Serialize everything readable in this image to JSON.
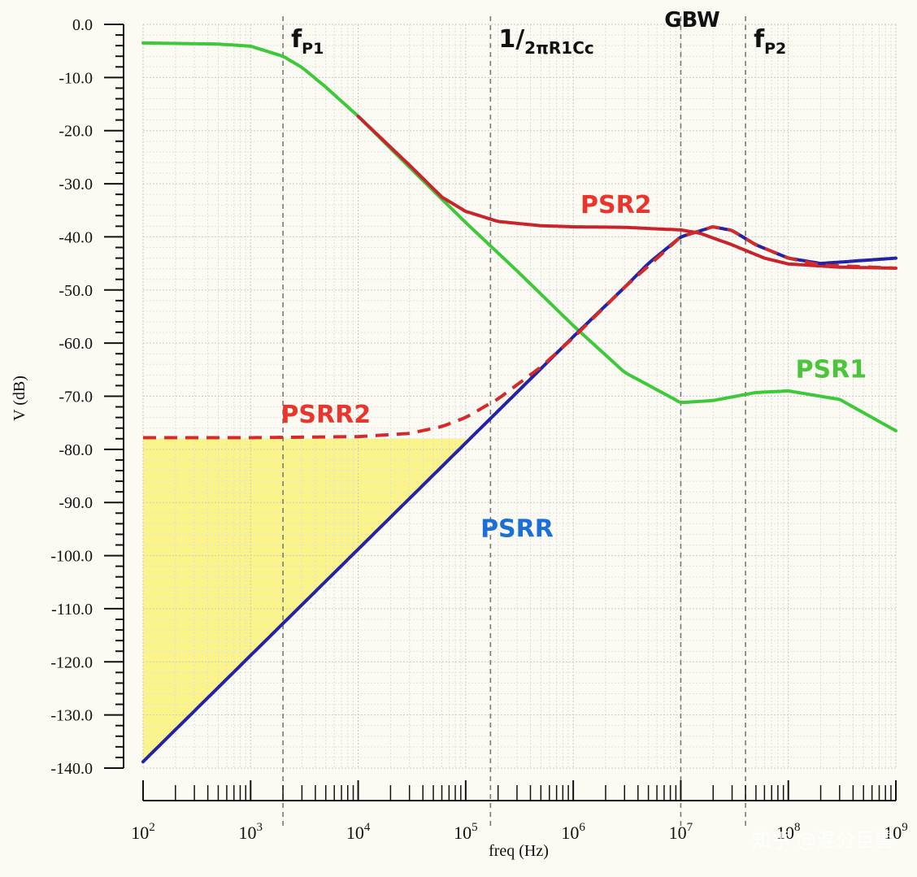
{
  "chart_data": {
    "type": "line",
    "xlabel": "freq (Hz)",
    "ylabel": "V (dB)",
    "xscale": "log",
    "xlim": [
      100,
      1000000000
    ],
    "ylim": [
      -140,
      0
    ],
    "grid": true,
    "y_ticks": [
      "0.0",
      "-10.0",
      "-20.0",
      "-30.0",
      "-40.0",
      "-50.0",
      "-60.0",
      "-70.0",
      "-80.0",
      "-90.0",
      "-100.0",
      "-110.0",
      "-120.0",
      "-130.0",
      "-140.0"
    ],
    "x_ticks": [
      {
        "base": "10",
        "exp": "2"
      },
      {
        "base": "10",
        "exp": "3"
      },
      {
        "base": "10",
        "exp": "4"
      },
      {
        "base": "10",
        "exp": "5"
      },
      {
        "base": "10",
        "exp": "6"
      },
      {
        "base": "10",
        "exp": "7"
      },
      {
        "base": "10",
        "exp": "8"
      },
      {
        "base": "10",
        "exp": "9"
      }
    ],
    "markers": [
      {
        "label": "fP1",
        "main": "f",
        "sub": "P1",
        "x": 2000
      },
      {
        "label": "1/2πR1Cc",
        "main": "1/",
        "sub": "2πR1Cc",
        "x": 170000
      },
      {
        "label": "GBW",
        "main": "GBW",
        "sub": "",
        "x": 10000000
      },
      {
        "label": "fP2",
        "main": "f",
        "sub": "P2",
        "x": 40000000
      }
    ],
    "series": [
      {
        "name": "PSR1",
        "color": "#3ec93a",
        "style": "solid",
        "x": [
          100,
          500,
          1000,
          2000,
          3000,
          5000,
          10000,
          30000,
          100000,
          300000,
          1000000,
          3000000,
          10000000,
          20000000,
          50000000,
          100000000,
          300000000,
          1000000000
        ],
        "y": [
          -3.5,
          -3.7,
          -4.1,
          -6,
          -8.1,
          -11.8,
          -17.3,
          -26.9,
          -37.3,
          -46.4,
          -56.7,
          -65.5,
          -71.2,
          -70.8,
          -69.3,
          -69,
          -70.6,
          -76.5
        ]
      },
      {
        "name": "PSR2",
        "color": "#c8242c",
        "style": "solid",
        "x": [
          10000,
          30000,
          60000,
          100000,
          200000,
          500000,
          1000000,
          3000000,
          10000000,
          15000000,
          30000000,
          60000000,
          100000000,
          300000000,
          1000000000
        ],
        "y": [
          -17.3,
          -26.5,
          -32.5,
          -35.2,
          -37.1,
          -37.9,
          -38.1,
          -38.2,
          -38.7,
          -39.3,
          -41.5,
          -44,
          -45.1,
          -45.7,
          -45.9
        ]
      },
      {
        "name": "PSRR",
        "color": "#2323a6",
        "style": "solid",
        "x": [
          100,
          100000,
          1000000,
          3000000,
          5000000,
          10000000,
          20000000,
          30000000,
          50000000,
          100000000,
          200000000,
          1000000000
        ],
        "y": [
          -138.8,
          -78.8,
          -58.8,
          -49.5,
          -45,
          -40,
          -38.1,
          -38.8,
          -41.5,
          -44,
          -45,
          -44
        ]
      },
      {
        "name": "PSRR2",
        "color": "#d42a2a",
        "style": "dashed",
        "x": [
          100,
          1000,
          10000,
          30000,
          60000,
          100000,
          200000,
          500000,
          1000000,
          3000000,
          10000000,
          20000000,
          30000000,
          50000000,
          100000000,
          200000000,
          1000000000
        ],
        "y": [
          -77.8,
          -77.8,
          -77.6,
          -77,
          -75.7,
          -74,
          -70.5,
          -64.5,
          -59,
          -49.5,
          -40,
          -38.1,
          -38.8,
          -41.5,
          -44,
          -45.3,
          -45.9
        ]
      }
    ],
    "annotations": [
      {
        "text": "PSR2",
        "color": "#e8352d",
        "x": 2500000,
        "y": -35.5
      },
      {
        "text": "PSR1",
        "color": "#4bc63b",
        "x": 250000000,
        "y": -66.5
      },
      {
        "text": "PSRR2",
        "color": "#e8352d",
        "x": 5000,
        "y": -75
      },
      {
        "text": "PSRR",
        "color": "#1d6fd8",
        "x": 300000,
        "y": -96.5
      }
    ],
    "shaded_region": {
      "color": "#fbf48a",
      "x": [
        100,
        100000
      ],
      "top_y": -78,
      "bottom_series": "PSRR"
    }
  },
  "watermark": "知乎 @混分巨兽"
}
